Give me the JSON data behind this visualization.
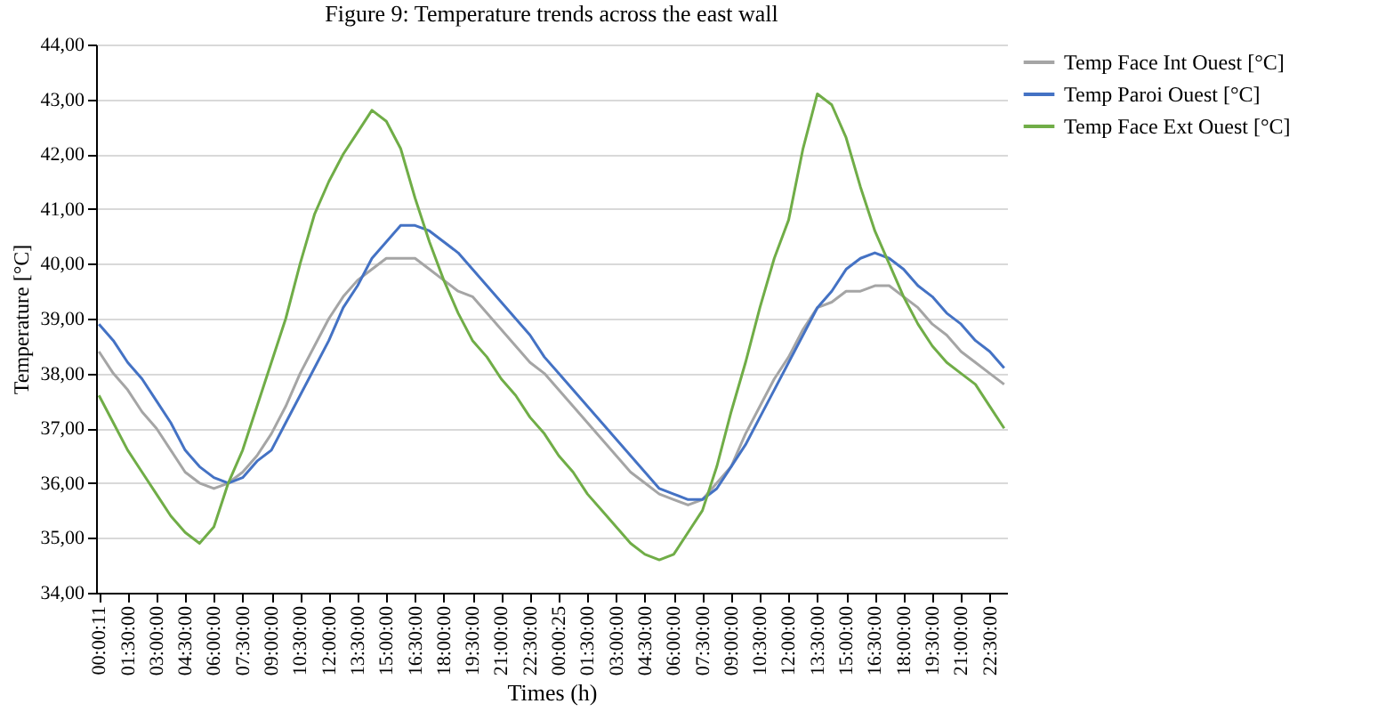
{
  "chart_data": {
    "type": "line",
    "title": "Figure 9: Temperature trends across the east wall",
    "xlabel": "Times (h)",
    "ylabel": "Temperature [°C]",
    "categories": [
      "00:00:11",
      null,
      "01:30:00",
      null,
      "03:00:00",
      null,
      "04:30:00",
      null,
      "06:00:00",
      null,
      "07:30:00",
      null,
      "09:00:00",
      null,
      "10:30:00",
      null,
      "12:00:00",
      null,
      "13:30:00",
      null,
      "15:00:00",
      null,
      "16:30:00",
      null,
      "18:00:00",
      null,
      "19:30:00",
      null,
      "21:00:00",
      null,
      "22:30:00",
      null,
      "00:00:25",
      null,
      "01:30:00",
      null,
      "03:00:00",
      null,
      "04:30:00",
      null,
      "06:00:00",
      null,
      "07:30:00",
      null,
      "09:00:00",
      null,
      "10:30:00",
      null,
      "12:00:00",
      null,
      "13:30:00",
      null,
      "15:00:00",
      null,
      "16:30:00",
      null,
      "18:00:00",
      null,
      "19:30:00",
      null,
      "21:00:00",
      null,
      "22:30:00",
      null
    ],
    "ylim": [
      34,
      44
    ],
    "yticks": [
      {
        "value": 34,
        "label": "34,00"
      },
      {
        "value": 35,
        "label": "35,00"
      },
      {
        "value": 36,
        "label": "36,00"
      },
      {
        "value": 37,
        "label": "37,00"
      },
      {
        "value": 38,
        "label": "38,00"
      },
      {
        "value": 39,
        "label": "39,00"
      },
      {
        "value": 40,
        "label": "40,00"
      },
      {
        "value": 41,
        "label": "41,00"
      },
      {
        "value": 42,
        "label": "42,00"
      },
      {
        "value": 43,
        "label": "43,00"
      },
      {
        "value": 44,
        "label": "44,00"
      }
    ],
    "grid": "y",
    "legend": "right",
    "marker": "none",
    "line_style": "solid",
    "series": [
      {
        "name": "Temp Face Int Ouest [°C]",
        "color": "#a5a5a5",
        "values": [
          38.4,
          38.0,
          37.7,
          37.3,
          37.0,
          36.6,
          36.2,
          36.0,
          35.9,
          36.0,
          36.2,
          36.5,
          36.9,
          37.4,
          38.0,
          38.5,
          39.0,
          39.4,
          39.7,
          39.9,
          40.1,
          40.1,
          40.1,
          39.9,
          39.7,
          39.5,
          39.4,
          39.1,
          38.8,
          38.5,
          38.2,
          38.0,
          37.7,
          37.4,
          37.1,
          36.8,
          36.5,
          36.2,
          36.0,
          35.8,
          35.7,
          35.6,
          35.7,
          36.0,
          36.3,
          36.9,
          37.4,
          37.9,
          38.3,
          38.8,
          39.2,
          39.3,
          39.5,
          39.5,
          39.6,
          39.6,
          39.4,
          39.2,
          38.9,
          38.7,
          38.4,
          38.2,
          38.0,
          37.8
        ]
      },
      {
        "name": "Temp Paroi Ouest [°C]",
        "color": "#4472c4",
        "values": [
          38.9,
          38.6,
          38.2,
          37.9,
          37.5,
          37.1,
          36.6,
          36.3,
          36.1,
          36.0,
          36.1,
          36.4,
          36.6,
          37.1,
          37.6,
          38.1,
          38.6,
          39.2,
          39.6,
          40.1,
          40.4,
          40.7,
          40.7,
          40.6,
          40.4,
          40.2,
          39.9,
          39.6,
          39.3,
          39.0,
          38.7,
          38.3,
          38.0,
          37.7,
          37.4,
          37.1,
          36.8,
          36.5,
          36.2,
          35.9,
          35.8,
          35.7,
          35.7,
          35.9,
          36.3,
          36.7,
          37.2,
          37.7,
          38.2,
          38.7,
          39.2,
          39.5,
          39.9,
          40.1,
          40.2,
          40.1,
          39.9,
          39.6,
          39.4,
          39.1,
          38.9,
          38.6,
          38.4,
          38.1
        ]
      },
      {
        "name": "Temp Face Ext Ouest [°C]",
        "color": "#70ad47",
        "values": [
          37.6,
          37.1,
          36.6,
          36.2,
          35.8,
          35.4,
          35.1,
          34.9,
          35.2,
          36.0,
          36.6,
          37.4,
          38.2,
          39.0,
          40.0,
          40.9,
          41.5,
          42.0,
          42.4,
          42.8,
          42.6,
          42.1,
          41.2,
          40.4,
          39.7,
          39.1,
          38.6,
          38.3,
          37.9,
          37.6,
          37.2,
          36.9,
          36.5,
          36.2,
          35.8,
          35.5,
          35.2,
          34.9,
          34.7,
          34.6,
          34.7,
          35.1,
          35.5,
          36.3,
          37.3,
          38.2,
          39.2,
          40.1,
          40.8,
          42.1,
          43.1,
          42.9,
          42.3,
          41.4,
          40.6,
          40.0,
          39.4,
          38.9,
          38.5,
          38.2,
          38.0,
          37.8,
          37.4,
          37.0
        ]
      }
    ]
  }
}
